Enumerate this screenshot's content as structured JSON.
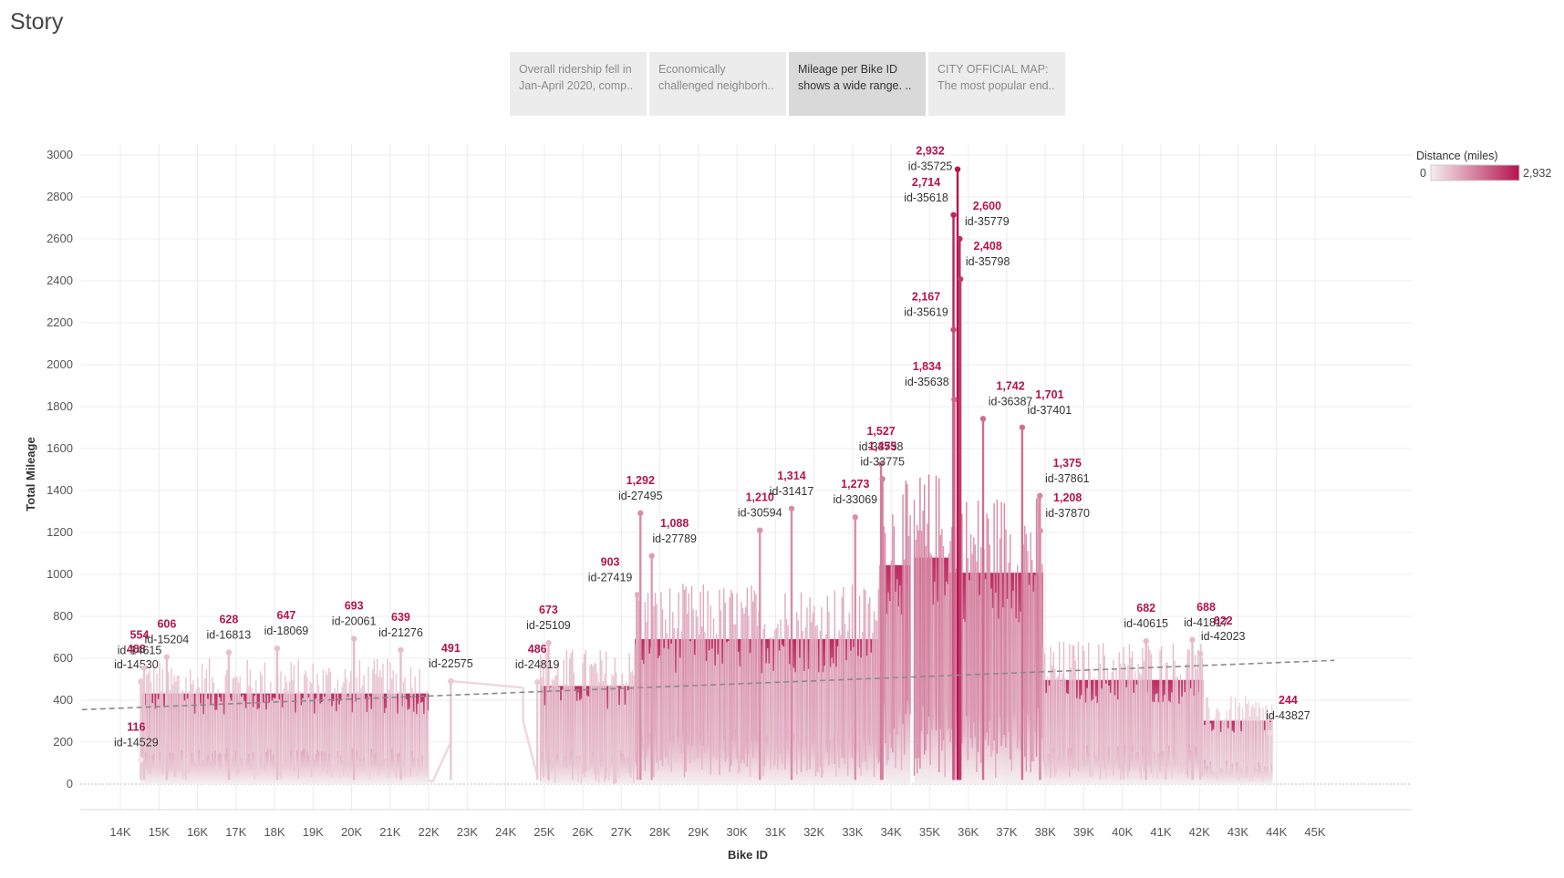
{
  "story": {
    "title": "Story",
    "points": [
      {
        "line1": "Overall ridership fell in",
        "line2": "Jan-April 2020, comp..",
        "active": false
      },
      {
        "line1": "Economically",
        "line2": "challenged neighborh..",
        "active": false
      },
      {
        "line1": "Mileage per Bike ID",
        "line2": "shows a wide range. ..",
        "active": true
      },
      {
        "line1": "CITY OFFICIAL MAP:",
        "line2": "The most popular end..",
        "active": false
      }
    ]
  },
  "legend": {
    "title": "Distance (miles)",
    "min_label": "0",
    "max_label": "2,932",
    "color_low": "#f4eef0",
    "color_high": "#b5134e"
  },
  "chart_data": {
    "type": "line",
    "xlabel": "Bike ID",
    "ylabel": "Total Mileage",
    "xlim": [
      13000,
      45500
    ],
    "ylim": [
      0,
      3000
    ],
    "x_ticks": [
      {
        "value": 14000,
        "label": "14K"
      },
      {
        "value": 15000,
        "label": "15K"
      },
      {
        "value": 16000,
        "label": "16K"
      },
      {
        "value": 17000,
        "label": "17K"
      },
      {
        "value": 18000,
        "label": "18K"
      },
      {
        "value": 19000,
        "label": "19K"
      },
      {
        "value": 20000,
        "label": "20K"
      },
      {
        "value": 21000,
        "label": "21K"
      },
      {
        "value": 22000,
        "label": "22K"
      },
      {
        "value": 23000,
        "label": "23K"
      },
      {
        "value": 24000,
        "label": "24K"
      },
      {
        "value": 25000,
        "label": "25K"
      },
      {
        "value": 26000,
        "label": "26K"
      },
      {
        "value": 27000,
        "label": "27K"
      },
      {
        "value": 28000,
        "label": "28K"
      },
      {
        "value": 29000,
        "label": "29K"
      },
      {
        "value": 30000,
        "label": "30K"
      },
      {
        "value": 31000,
        "label": "31K"
      },
      {
        "value": 32000,
        "label": "32K"
      },
      {
        "value": 33000,
        "label": "33K"
      },
      {
        "value": 34000,
        "label": "34K"
      },
      {
        "value": 35000,
        "label": "35K"
      },
      {
        "value": 36000,
        "label": "36K"
      },
      {
        "value": 37000,
        "label": "37K"
      },
      {
        "value": 38000,
        "label": "38K"
      },
      {
        "value": 39000,
        "label": "39K"
      },
      {
        "value": 40000,
        "label": "40K"
      },
      {
        "value": 41000,
        "label": "41K"
      },
      {
        "value": 42000,
        "label": "42K"
      },
      {
        "value": 43000,
        "label": "43K"
      },
      {
        "value": 44000,
        "label": "44K"
      },
      {
        "value": 45000,
        "label": "45K"
      }
    ],
    "y_ticks": [
      {
        "value": 0,
        "label": "0"
      },
      {
        "value": 200,
        "label": "200"
      },
      {
        "value": 400,
        "label": "400"
      },
      {
        "value": 600,
        "label": "600"
      },
      {
        "value": 800,
        "label": "800"
      },
      {
        "value": 1000,
        "label": "1000"
      },
      {
        "value": 1200,
        "label": "1200"
      },
      {
        "value": 1400,
        "label": "1400"
      },
      {
        "value": 1600,
        "label": "1600"
      },
      {
        "value": 1800,
        "label": "1800"
      },
      {
        "value": 2000,
        "label": "2000"
      },
      {
        "value": 2200,
        "label": "2200"
      },
      {
        "value": 2400,
        "label": "2400"
      },
      {
        "value": 2600,
        "label": "2600"
      },
      {
        "value": 2800,
        "label": "2800"
      },
      {
        "value": 3000,
        "label": "3000"
      }
    ],
    "trend_line": {
      "x": [
        13000,
        45500
      ],
      "y": [
        355,
        590
      ],
      "style": "dashed"
    },
    "series": [
      {
        "segments": [
          {
            "x_start": 14530,
            "x_end": 22000,
            "min": 20,
            "max": 600
          },
          {
            "x_start": 24900,
            "x_end": 27350,
            "min": 0,
            "max": 650
          },
          {
            "x_start": 27350,
            "x_end": 33700,
            "min": 30,
            "max": 960
          },
          {
            "x_start": 33700,
            "x_end": 34500,
            "min": 50,
            "max": 1450
          },
          {
            "x_start": 34600,
            "x_end": 35500,
            "min": 20,
            "max": 1500
          },
          {
            "x_start": 35500,
            "x_end": 37950,
            "min": 30,
            "max": 1400
          },
          {
            "x_start": 37950,
            "x_end": 42100,
            "min": 20,
            "max": 690
          },
          {
            "x_start": 42100,
            "x_end": 43900,
            "min": 10,
            "max": 420
          }
        ]
      }
    ],
    "annotations": [
      {
        "x": 14529,
        "y": 116,
        "value_label": "116",
        "id_label": "id-14529"
      },
      {
        "x": 14530,
        "y": 488,
        "value_label": "488",
        "id_label": "id-14530"
      },
      {
        "x": 14615,
        "y": 554,
        "value_label": "554",
        "id_label": "id-14615"
      },
      {
        "x": 15204,
        "y": 606,
        "value_label": "606",
        "id_label": "id-15204"
      },
      {
        "x": 16813,
        "y": 628,
        "value_label": "628",
        "id_label": "id-16813"
      },
      {
        "x": 18069,
        "y": 647,
        "value_label": "647",
        "id_label": "id-18069"
      },
      {
        "x": 20061,
        "y": 693,
        "value_label": "693",
        "id_label": "id-20061"
      },
      {
        "x": 21276,
        "y": 639,
        "value_label": "639",
        "id_label": "id-21276"
      },
      {
        "x": 22575,
        "y": 491,
        "value_label": "491",
        "id_label": "id-22575"
      },
      {
        "x": 24819,
        "y": 486,
        "value_label": "486",
        "id_label": "id-24819"
      },
      {
        "x": 25109,
        "y": 673,
        "value_label": "673",
        "id_label": "id-25109"
      },
      {
        "x": 27419,
        "y": 903,
        "value_label": "903",
        "id_label": "id-27419"
      },
      {
        "x": 27495,
        "y": 1292,
        "value_label": "1,292",
        "id_label": "id-27495"
      },
      {
        "x": 27789,
        "y": 1088,
        "value_label": "1,088",
        "id_label": "id-27789"
      },
      {
        "x": 30594,
        "y": 1210,
        "value_label": "1,210",
        "id_label": "id-30594"
      },
      {
        "x": 31417,
        "y": 1314,
        "value_label": "1,314",
        "id_label": "id-31417"
      },
      {
        "x": 33069,
        "y": 1273,
        "value_label": "1,273",
        "id_label": "id-33069"
      },
      {
        "x": 33738,
        "y": 1527,
        "value_label": "1,527",
        "id_label": "id-33738"
      },
      {
        "x": 33775,
        "y": 1455,
        "value_label": "1,455",
        "id_label": "id-33775"
      },
      {
        "x": 35618,
        "y": 2714,
        "value_label": "2,714",
        "id_label": "id-35618"
      },
      {
        "x": 35619,
        "y": 2167,
        "value_label": "2,167",
        "id_label": "id-35619"
      },
      {
        "x": 35638,
        "y": 1834,
        "value_label": "1,834",
        "id_label": "id-35638"
      },
      {
        "x": 35725,
        "y": 2932,
        "value_label": "2,932",
        "id_label": "id-35725"
      },
      {
        "x": 35779,
        "y": 2600,
        "value_label": "2,600",
        "id_label": "id-35779"
      },
      {
        "x": 35798,
        "y": 2408,
        "value_label": "2,408",
        "id_label": "id-35798"
      },
      {
        "x": 36387,
        "y": 1742,
        "value_label": "1,742",
        "id_label": "id-36387"
      },
      {
        "x": 37401,
        "y": 1701,
        "value_label": "1,701",
        "id_label": "id-37401"
      },
      {
        "x": 37861,
        "y": 1375,
        "value_label": "1,375",
        "id_label": "id-37861"
      },
      {
        "x": 37870,
        "y": 1208,
        "value_label": "1,208",
        "id_label": "id-37870"
      },
      {
        "x": 40615,
        "y": 682,
        "value_label": "682",
        "id_label": "id-40615"
      },
      {
        "x": 41817,
        "y": 688,
        "value_label": "688",
        "id_label": "id-41817"
      },
      {
        "x": 42023,
        "y": 622,
        "value_label": "622",
        "id_label": "id-42023"
      },
      {
        "x": 43827,
        "y": 244,
        "value_label": "244",
        "id_label": "id-43827"
      }
    ]
  }
}
